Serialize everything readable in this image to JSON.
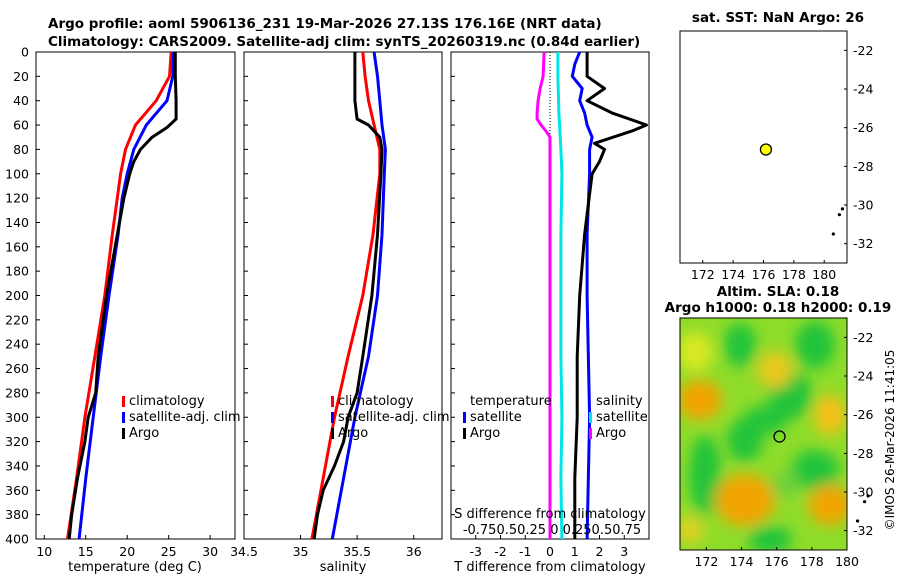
{
  "header": {
    "title_line1": "Argo profile: aoml 5906136_231 19-Mar-2026 27.13S 176.16E (NRT data)",
    "title_line2": "Climatology: CARS2009. Satellite-adj clim: synTS_20260319.nc (0.84d earlier)"
  },
  "timestamp": "©IMOS 26-Mar-2026 11:41:05",
  "colors": {
    "red": "#ff0000",
    "blue": "#0000ff",
    "black": "#000000",
    "cyan": "#00e5e5",
    "magenta": "#ff00ff",
    "marker": "#ffff00"
  },
  "chart_data": [
    {
      "id": "temperature",
      "type": "line",
      "xlabel": "temperature (deg C)",
      "xlim": [
        9,
        33
      ],
      "ylim": [
        0,
        400
      ],
      "xticks": [
        10,
        15,
        20,
        25,
        30
      ],
      "yticks": [
        0,
        20,
        40,
        60,
        80,
        100,
        120,
        140,
        160,
        180,
        200,
        220,
        240,
        260,
        280,
        300,
        320,
        340,
        360,
        380,
        400
      ],
      "legend": [
        "climatology",
        "satellite-adj. clim",
        "Argo"
      ],
      "series": [
        {
          "name": "climatology",
          "color": "#ff0000",
          "depth": [
            0,
            20,
            40,
            60,
            80,
            100,
            120,
            150,
            200,
            250,
            300,
            350,
            400
          ],
          "values": [
            25.3,
            25.1,
            23.5,
            21.0,
            19.8,
            19.2,
            18.8,
            18.2,
            17.3,
            16.1,
            14.9,
            13.9,
            12.8
          ]
        },
        {
          "name": "satellite-adj. clim",
          "color": "#0000ff",
          "depth": [
            0,
            20,
            40,
            60,
            80,
            100,
            120,
            150,
            200,
            250,
            300,
            350,
            400
          ],
          "values": [
            25.6,
            25.5,
            24.8,
            22.3,
            20.8,
            20.0,
            19.4,
            18.9,
            17.8,
            16.8,
            15.9,
            15.0,
            14.2
          ]
        },
        {
          "name": "Argo",
          "color": "#000000",
          "depth": [
            0,
            20,
            40,
            55,
            62,
            70,
            80,
            90,
            100,
            120,
            150,
            200,
            250,
            280,
            300,
            320,
            350,
            380,
            400
          ],
          "values": [
            25.8,
            25.8,
            25.9,
            25.9,
            24.8,
            23.0,
            21.6,
            20.8,
            20.3,
            19.6,
            18.8,
            17.5,
            16.5,
            16.2,
            15.3,
            14.9,
            14.0,
            13.3,
            13.0
          ]
        }
      ]
    },
    {
      "id": "salinity",
      "type": "line",
      "xlabel": "salinity",
      "xlim": [
        34.5,
        36.25
      ],
      "ylim": [
        0,
        400
      ],
      "xticks": [
        34.5,
        35,
        35.5,
        36
      ],
      "xticklabels": [
        "34.5",
        "35",
        "35.5",
        "36"
      ],
      "legend": [
        "climatology",
        "satellite-adj. clim",
        "Argo"
      ],
      "series": [
        {
          "name": "climatology",
          "color": "#ff0000",
          "depth": [
            0,
            20,
            40,
            60,
            80,
            100,
            150,
            200,
            250,
            300,
            350,
            400
          ],
          "values": [
            35.55,
            35.57,
            35.6,
            35.65,
            35.7,
            35.7,
            35.64,
            35.55,
            35.42,
            35.3,
            35.2,
            35.1
          ]
        },
        {
          "name": "satellite-adj. clim",
          "color": "#0000ff",
          "depth": [
            0,
            20,
            40,
            60,
            80,
            100,
            150,
            200,
            250,
            300,
            350,
            400
          ],
          "values": [
            35.65,
            35.68,
            35.7,
            35.72,
            35.75,
            35.74,
            35.72,
            35.68,
            35.6,
            35.48,
            35.38,
            35.28
          ]
        },
        {
          "name": "Argo",
          "color": "#000000",
          "depth": [
            0,
            20,
            40,
            55,
            60,
            70,
            80,
            100,
            150,
            200,
            250,
            280,
            300,
            320,
            340,
            360,
            380,
            400
          ],
          "values": [
            35.48,
            35.48,
            35.48,
            35.5,
            35.6,
            35.7,
            35.72,
            35.71,
            35.68,
            35.63,
            35.55,
            35.5,
            35.42,
            35.38,
            35.3,
            35.2,
            35.15,
            35.12
          ]
        }
      ]
    },
    {
      "id": "difference",
      "type": "line",
      "xlabel": "T difference from climatology",
      "xlim": [
        -4,
        4
      ],
      "ylim": [
        0,
        400
      ],
      "xticks": [
        -3,
        -2,
        -1,
        0,
        1,
        2,
        3
      ],
      "s_axis_title": "S difference from climatology",
      "s_axis_ticks": "-0.750.50.25  0  0.250.50.75",
      "legend": {
        "temperature_title": "temperature",
        "salinity_title": "salinity",
        "temperature_items": [
          "satellite",
          "Argo"
        ],
        "salinity_items": [
          "satellite",
          "Argo"
        ]
      },
      "series": [
        {
          "name": "temperature satellite",
          "color": "#0000ff",
          "depth": [
            0,
            10,
            20,
            30,
            40,
            50,
            60,
            70,
            80,
            100,
            150,
            200,
            300,
            400
          ],
          "values": [
            1.2,
            1.0,
            0.9,
            1.3,
            1.2,
            1.4,
            1.5,
            1.7,
            1.6,
            1.6,
            1.5,
            1.5,
            1.6,
            1.5
          ]
        },
        {
          "name": "temperature Argo",
          "color": "#000000",
          "depth": [
            0,
            20,
            30,
            40,
            50,
            60,
            65,
            75,
            80,
            90,
            100,
            150,
            200,
            250,
            300,
            350,
            400
          ],
          "values": [
            1.5,
            1.5,
            2.2,
            1.5,
            2.5,
            3.9,
            3.3,
            1.8,
            2.2,
            2.0,
            1.7,
            1.4,
            1.2,
            1.1,
            1.1,
            1.0,
            1.0
          ]
        },
        {
          "name": "salinity satellite",
          "color": "#00e5e5",
          "depth": [
            0,
            20,
            50,
            80,
            100,
            150,
            200,
            250,
            300,
            350,
            400
          ],
          "values": [
            0.08,
            0.08,
            0.09,
            0.11,
            0.12,
            0.11,
            0.11,
            0.11,
            0.12,
            0.11,
            0.12
          ]
        },
        {
          "name": "salinity Argo",
          "color": "#ff00ff",
          "depth": [
            0,
            20,
            30,
            40,
            50,
            55,
            60,
            65,
            70,
            80,
            100,
            150,
            200,
            250,
            300,
            350,
            400
          ],
          "values": [
            -0.06,
            -0.07,
            -0.1,
            -0.12,
            -0.13,
            -0.13,
            -0.09,
            -0.04,
            0.0,
            0.0,
            0.0,
            0.0,
            0.0,
            0.0,
            0.0,
            0.0,
            0.0
          ]
        }
      ]
    },
    {
      "id": "sst_map",
      "type": "scatter",
      "title": "sat. SST: NaN Argo: 26",
      "xlim": [
        170.5,
        181.5
      ],
      "ylim": [
        -33,
        -21
      ],
      "xticks": [
        172,
        174,
        176,
        178,
        180
      ],
      "yticks": [
        -22,
        -24,
        -26,
        -28,
        -30,
        -32
      ],
      "argo_position": {
        "lon": 176.16,
        "lat": -27.13
      },
      "islands": [
        [
          181.0,
          -30.5
        ],
        [
          181.2,
          -30.2
        ],
        [
          180.6,
          -31.5
        ]
      ]
    },
    {
      "id": "sla_map",
      "type": "heatmap",
      "title_line1": "Altim. SLA: 0.18",
      "title_line2": "Argo h1000: 0.18 h2000: 0.19",
      "xlim": [
        170.5,
        180.0
      ],
      "ylim": [
        -33,
        -21
      ],
      "xticks": [
        172,
        174,
        176,
        178,
        180
      ],
      "yticks": [
        -22,
        -24,
        -26,
        -28,
        -30,
        -32
      ],
      "argo_position": {
        "lon": 176.16,
        "lat": -27.13
      },
      "islands": [
        [
          181.0,
          -30.5
        ],
        [
          181.2,
          -30.2
        ],
        [
          180.6,
          -31.5
        ]
      ]
    }
  ]
}
